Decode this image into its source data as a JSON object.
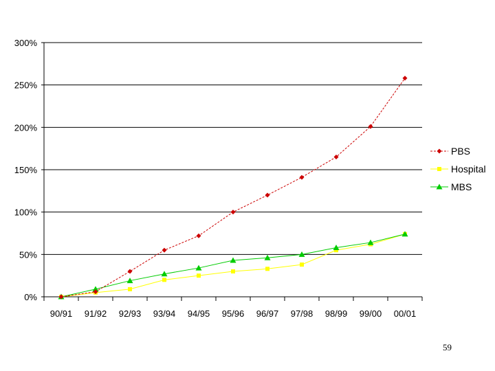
{
  "page_number": "59",
  "chart_data": {
    "type": "line",
    "categories": [
      "90/91",
      "91/92",
      "92/93",
      "93/94",
      "94/95",
      "95/96",
      "96/97",
      "97/98",
      "98/99",
      "99/00",
      "00/01"
    ],
    "y_ticks": [
      "0%",
      "50%",
      "100%",
      "150%",
      "200%",
      "250%",
      "300%"
    ],
    "ylim": [
      0,
      300
    ],
    "y_unit": "%",
    "grid": "horizontal",
    "legend_position": "right",
    "series": [
      {
        "name": "PBS",
        "color": "#cc0000",
        "marker": "diamond",
        "line": "dashed",
        "values": [
          0,
          6,
          30,
          55,
          72,
          100,
          120,
          141,
          165,
          201,
          258
        ]
      },
      {
        "name": "Hospital",
        "color": "#ffff00",
        "marker": "square",
        "line": "solid",
        "values": [
          0,
          5,
          9,
          20,
          25,
          30,
          33,
          38,
          55,
          62,
          74
        ]
      },
      {
        "name": "MBS",
        "color": "#00cc00",
        "marker": "triangle",
        "line": "solid",
        "values": [
          0,
          9,
          19,
          27,
          34,
          43,
          46,
          50,
          58,
          64,
          74
        ]
      }
    ]
  }
}
